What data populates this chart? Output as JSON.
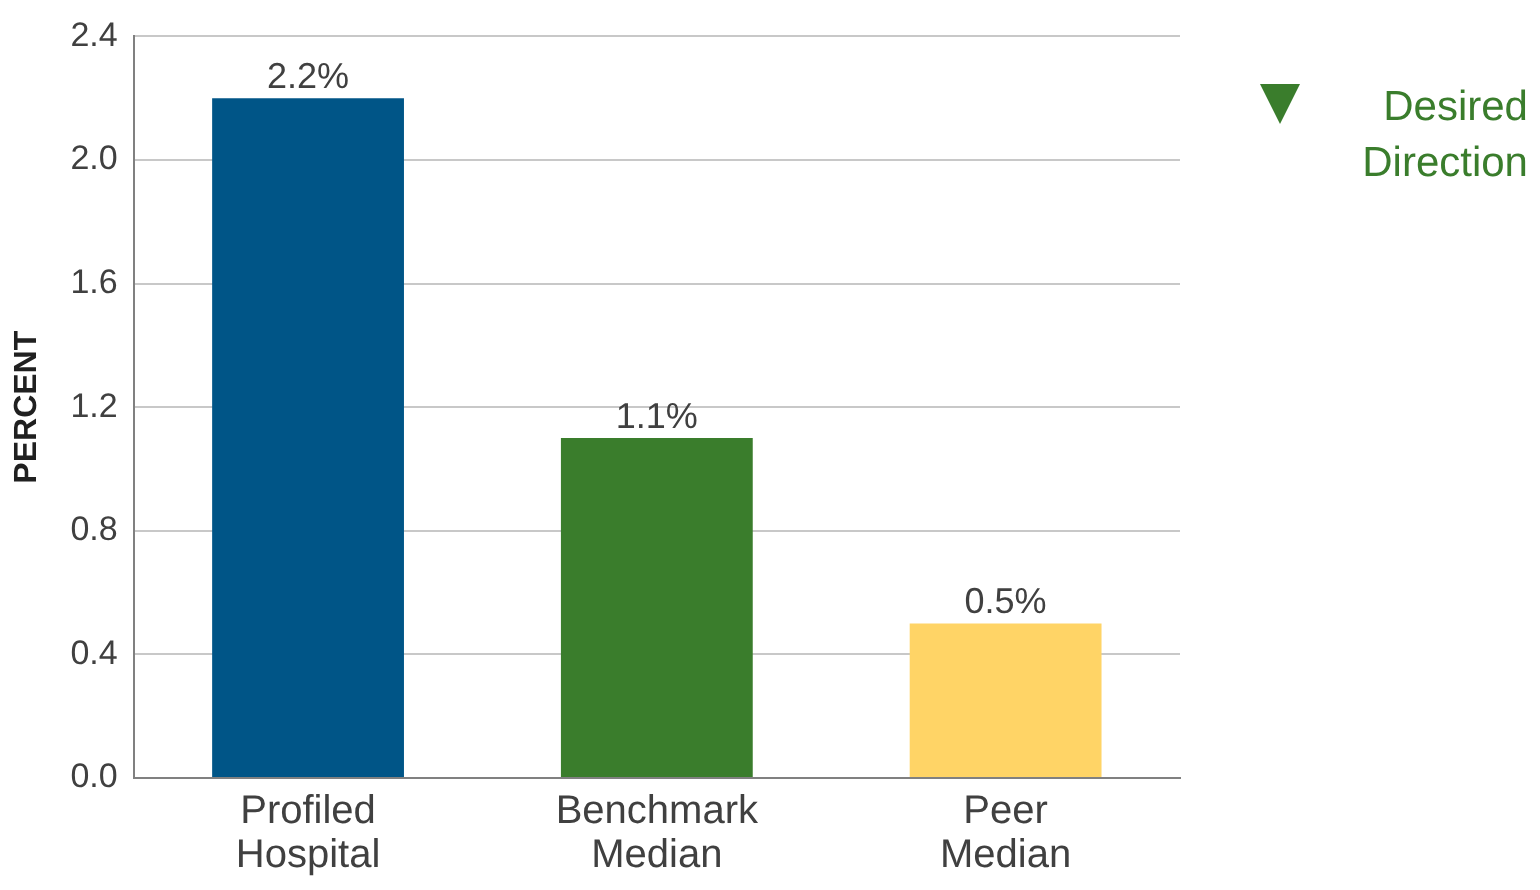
{
  "chart_data": {
    "type": "bar",
    "ylabel": "PERCENT",
    "categories": [
      "Profiled Hospital",
      "Benchmark Median",
      "Peer Median"
    ],
    "values": [
      2.2,
      1.1,
      0.5
    ],
    "colors": [
      "#005587",
      "#3a7d2c",
      "#ffd466"
    ],
    "value_labels": [
      "2.2%",
      "1.1%",
      "0.5%"
    ],
    "ylim": [
      0,
      2.4
    ],
    "yticks": [
      {
        "value": 0,
        "label": "0.0"
      },
      0.4,
      0.8,
      1.2,
      1.6,
      {
        "value": 2,
        "label": "2.0"
      },
      2.4
    ],
    "grid": "y",
    "legend": false,
    "annotations": [
      "Desired Direction"
    ]
  }
}
